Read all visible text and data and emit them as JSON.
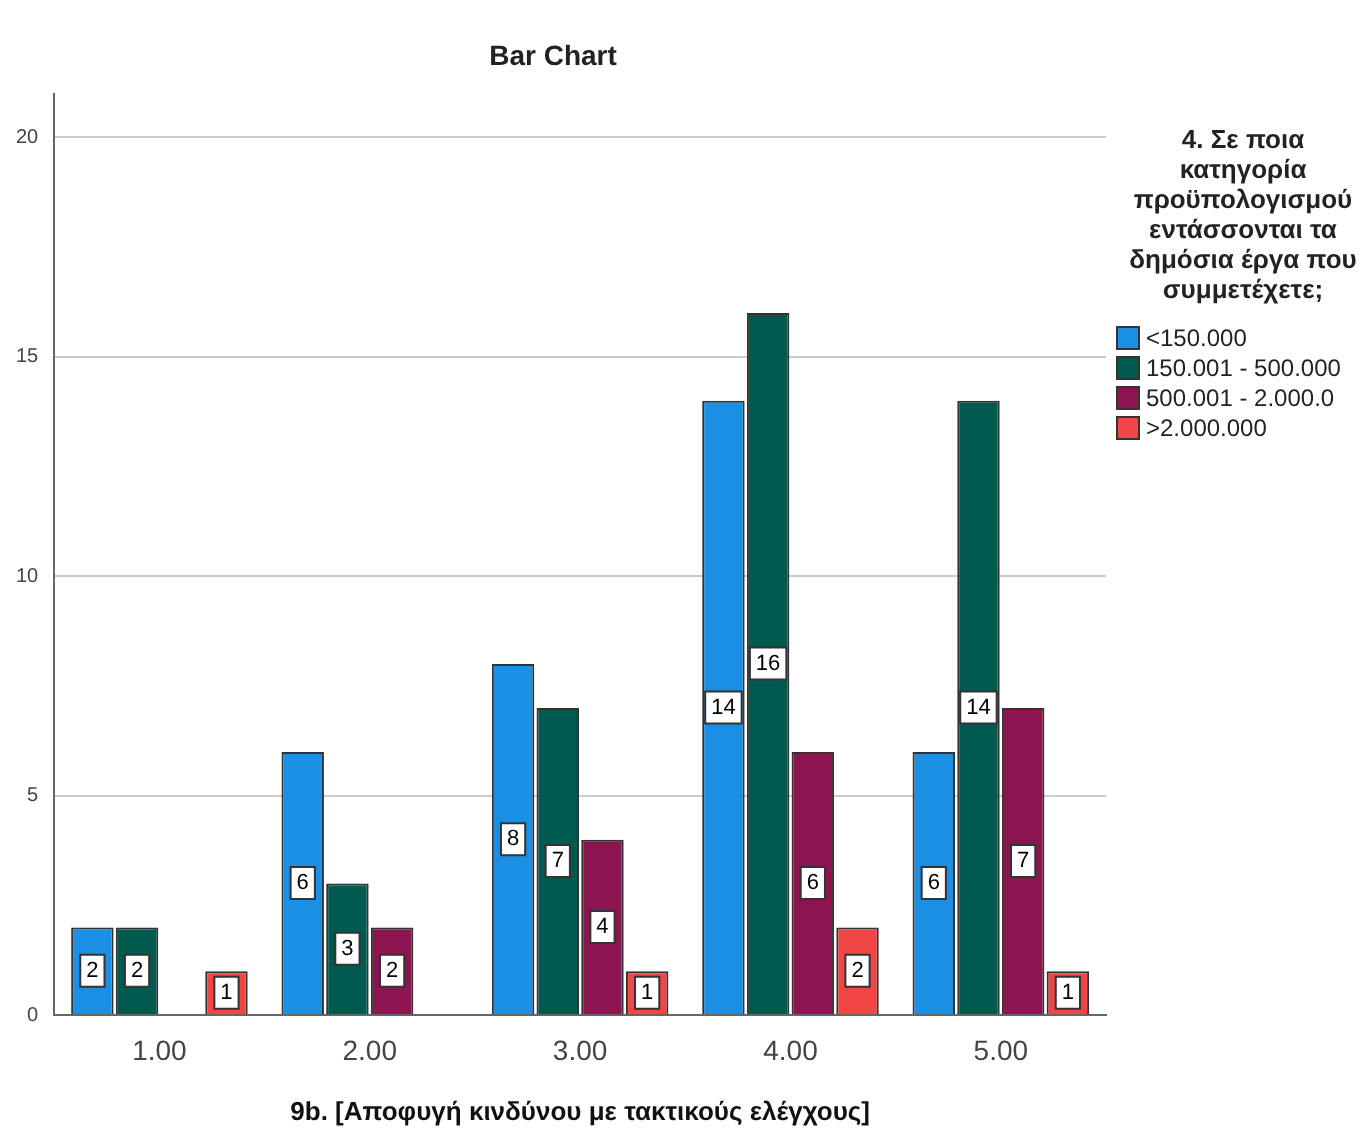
{
  "chart_data": {
    "type": "bar",
    "title": "Bar Chart",
    "xlabel": "9b. [Αποφυγή κινδύνου με τακτικούς ελέγχους]",
    "legend_title": "4. Σε ποια κατηγορία προϋπολογισμού εντάσσονται τα δημόσια έργα που συμμετέχετε;",
    "categories": [
      "1.00",
      "2.00",
      "3.00",
      "4.00",
      "5.00"
    ],
    "series": [
      {
        "name": "<150.000",
        "color": "#1a8fe3",
        "values": [
          2,
          6,
          8,
          14,
          6
        ]
      },
      {
        "name": "150.001 - 500.000",
        "color": "#005a50",
        "values": [
          2,
          3,
          7,
          16,
          14
        ]
      },
      {
        "name": "500.001 - 2.000.0",
        "color": "#8c1450",
        "values": [
          null,
          2,
          4,
          6,
          7
        ]
      },
      {
        "name": ">2.000.000",
        "color": "#f04646",
        "values": [
          1,
          null,
          1,
          2,
          1
        ]
      }
    ],
    "ylim": [
      0,
      21
    ],
    "yticks": [
      0,
      5,
      10,
      15,
      20
    ],
    "grid": "y",
    "legend": "right",
    "data_labels": true
  }
}
